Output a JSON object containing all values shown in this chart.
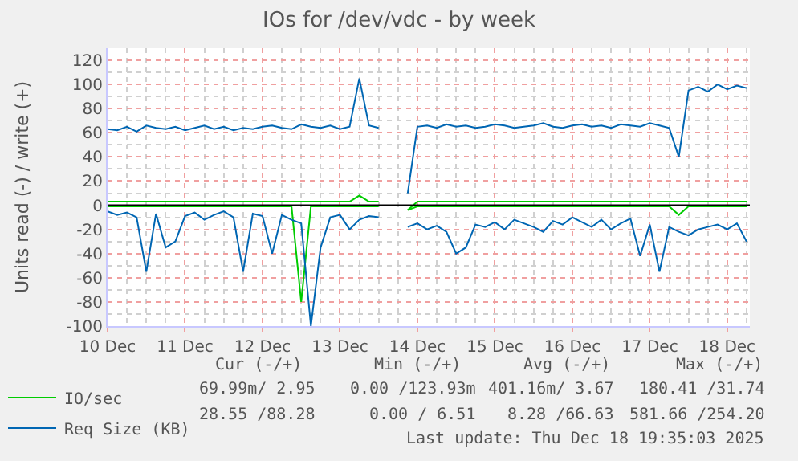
{
  "chart_data": {
    "type": "line",
    "title": "IOs for /dev/vdc - by week",
    "ylabel": "Units read (-) / write (+)",
    "x": [
      "2025-12-10T00:00",
      "2025-12-10T03:00",
      "2025-12-10T06:00",
      "2025-12-10T09:00",
      "2025-12-10T12:00",
      "2025-12-10T15:00",
      "2025-12-10T18:00",
      "2025-12-10T21:00",
      "2025-12-11T00:00",
      "2025-12-11T03:00",
      "2025-12-11T06:00",
      "2025-12-11T09:00",
      "2025-12-11T12:00",
      "2025-12-11T15:00",
      "2025-12-11T18:00",
      "2025-12-11T21:00",
      "2025-12-12T00:00",
      "2025-12-12T03:00",
      "2025-12-12T06:00",
      "2025-12-12T09:00",
      "2025-12-12T12:00",
      "2025-12-12T15:00",
      "2025-12-12T18:00",
      "2025-12-12T21:00",
      "2025-12-13T00:00",
      "2025-12-13T03:00",
      "2025-12-13T06:00",
      "2025-12-13T09:00",
      "2025-12-13T12:00",
      "2025-12-13T15:00",
      "2025-12-13T18:00",
      "2025-12-13T21:00",
      "2025-12-14T00:00",
      "2025-12-14T03:00",
      "2025-12-14T06:00",
      "2025-12-14T09:00",
      "2025-12-14T12:00",
      "2025-12-14T15:00",
      "2025-12-14T18:00",
      "2025-12-14T21:00",
      "2025-12-15T00:00",
      "2025-12-15T03:00",
      "2025-12-15T06:00",
      "2025-12-15T09:00",
      "2025-12-15T12:00",
      "2025-12-15T15:00",
      "2025-12-15T18:00",
      "2025-12-15T21:00",
      "2025-12-16T00:00",
      "2025-12-16T03:00",
      "2025-12-16T06:00",
      "2025-12-16T09:00",
      "2025-12-16T12:00",
      "2025-12-16T15:00",
      "2025-12-16T18:00",
      "2025-12-16T21:00",
      "2025-12-17T00:00",
      "2025-12-17T03:00",
      "2025-12-17T06:00",
      "2025-12-17T09:00",
      "2025-12-17T12:00",
      "2025-12-17T15:00",
      "2025-12-17T18:00",
      "2025-12-17T21:00",
      "2025-12-18T00:00",
      "2025-12-18T03:00",
      "2025-12-18T06:00"
    ],
    "series": [
      {
        "name": "IO/sec",
        "color": "#00cc00",
        "values": [
          3,
          3,
          3,
          3,
          3,
          3,
          3,
          3,
          3,
          3,
          3,
          3,
          3,
          3,
          3,
          3,
          3,
          3,
          3,
          3,
          3,
          3,
          3,
          3,
          3,
          3,
          8,
          3,
          3,
          null,
          null,
          -4,
          3,
          3,
          3,
          3,
          3,
          3,
          3,
          3,
          3,
          3,
          3,
          3,
          3,
          3,
          3,
          3,
          3,
          3,
          3,
          3,
          3,
          3,
          3,
          3,
          3,
          3,
          3,
          3,
          3,
          3,
          3,
          3,
          3,
          3,
          3
        ]
      },
      {
        "color": "#00cc00",
        "values": [
          -1,
          -1,
          -1,
          -1,
          -1,
          -1,
          -1,
          -1,
          -1,
          -1,
          -1,
          -1,
          -1,
          -1,
          -1,
          -1,
          -1,
          -1,
          -1,
          -1,
          -80,
          -1,
          -1,
          -1,
          -1,
          -1,
          -1,
          -1,
          -1,
          null,
          null,
          -4,
          -1,
          -1,
          -1,
          -1,
          -1,
          -1,
          -1,
          -1,
          -1,
          -1,
          -1,
          -1,
          -1,
          -1,
          -1,
          -1,
          -1,
          -1,
          -1,
          -1,
          -1,
          -1,
          -1,
          -1,
          -1,
          -1,
          -1,
          -8,
          -1,
          -1,
          -1,
          -1,
          -1,
          -1,
          -1
        ]
      },
      {
        "name": "Req Size (KB)",
        "color": "#0066b3",
        "values": [
          63,
          62,
          65,
          61,
          66,
          64,
          63,
          65,
          62,
          64,
          66,
          63,
          65,
          62,
          64,
          63,
          65,
          66,
          64,
          63,
          67,
          65,
          64,
          66,
          63,
          65,
          105,
          66,
          64,
          null,
          null,
          10,
          65,
          66,
          64,
          67,
          65,
          66,
          64,
          65,
          67,
          66,
          64,
          65,
          66,
          68,
          65,
          64,
          66,
          67,
          65,
          66,
          64,
          67,
          66,
          65,
          68,
          66,
          64,
          40,
          95,
          98,
          94,
          100,
          96,
          99,
          97
        ]
      },
      {
        "color": "#0066b3",
        "values": [
          -5,
          -8,
          -6,
          -10,
          -55,
          -7,
          -35,
          -30,
          -9,
          -6,
          -12,
          -8,
          -5,
          -10,
          -55,
          -7,
          -9,
          -40,
          -8,
          -12,
          -15,
          -100,
          -35,
          -10,
          -8,
          -20,
          -12,
          -9,
          -10,
          null,
          null,
          -18,
          -15,
          -20,
          -17,
          -22,
          -40,
          -35,
          -16,
          -18,
          -14,
          -20,
          -12,
          -15,
          -18,
          -22,
          -13,
          -16,
          -10,
          -14,
          -18,
          -12,
          -20,
          -15,
          -11,
          -42,
          -16,
          -55,
          -18,
          -22,
          -25,
          -20,
          -18,
          -16,
          -20,
          -15,
          -30
        ]
      }
    ],
    "xlim": [
      "2025-12-10T00:00",
      "2025-12-18T07:00"
    ],
    "xticks": [
      {
        "value": "2025-12-10",
        "label": "10 Dec"
      },
      {
        "value": "2025-12-11",
        "label": "11 Dec"
      },
      {
        "value": "2025-12-12",
        "label": "12 Dec"
      },
      {
        "value": "2025-12-13",
        "label": "13 Dec"
      },
      {
        "value": "2025-12-14",
        "label": "14 Dec"
      },
      {
        "value": "2025-12-15",
        "label": "15 Dec"
      },
      {
        "value": "2025-12-16",
        "label": "16 Dec"
      },
      {
        "value": "2025-12-17",
        "label": "17 Dec"
      },
      {
        "value": "2025-12-18",
        "label": "18 Dec"
      }
    ],
    "ylim": [
      -100,
      130
    ],
    "yticks": [
      -100,
      -80,
      -60,
      -40,
      -20,
      0,
      20,
      40,
      60,
      80,
      100,
      120
    ],
    "ref_lines": [
      {
        "axis": "y",
        "value": 0,
        "color": "#000000"
      }
    ],
    "grid": true,
    "legend": "bottom left",
    "marker": "none",
    "line_style": "solid",
    "annotations": [
      "Cur (-/+)",
      "Min (-/+)",
      "Avg (-/+)",
      "Max (-/+)",
      "69.99m/ 2.95",
      "0.00 /123.93m",
      "401.16m/ 3.67",
      "180.41 /31.74",
      "28.55 /88.28",
      "0.00 / 6.51",
      "8.28 /66.63",
      "581.66 /254.20",
      "Last update: Thu Dec 18 19:35:03 2025"
    ]
  }
}
